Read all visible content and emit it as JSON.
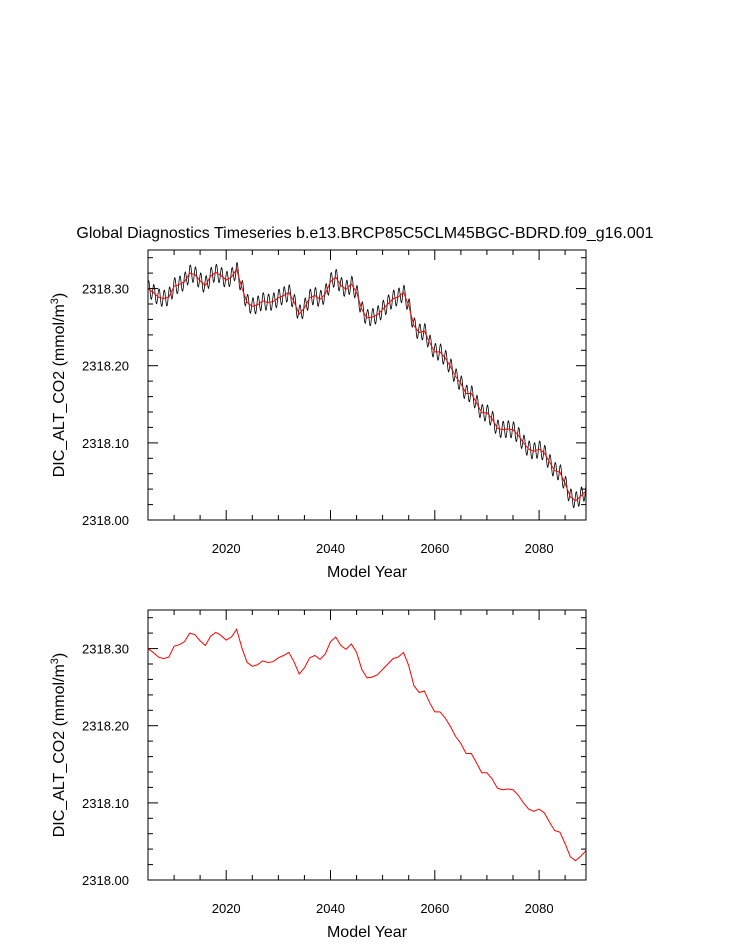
{
  "figure_title": "Global Diagnostics Timeseries b.e13.BRCP85C5CLM45BGC-BDRD.f09_g16.001",
  "colors": {
    "monthly": "#000000",
    "annual": "#ff0000",
    "axis": "#000000"
  },
  "chart_data": [
    {
      "type": "line",
      "title": "Global Diagnostics Timeseries b.e13.BRCP85C5CLM45BGC-BDRD.f09_g16.001",
      "xlabel": "Model Year",
      "ylabel": "DIC_ALT_CO2 (mmol/m",
      "ylabel_sup": "3",
      "ylabel_close": ")",
      "xlim": [
        2005,
        2089
      ],
      "ylim": [
        2318.0,
        2318.35
      ],
      "xticks": [
        2020,
        2040,
        2060,
        2080
      ],
      "xtick_labels": [
        "2020",
        "2040",
        "2060",
        "2080"
      ],
      "yticks": [
        2318.0,
        2318.1,
        2318.2,
        2318.3
      ],
      "ytick_labels": [
        "2318.00",
        "2318.10",
        "2318.20",
        "2318.30"
      ],
      "series": [
        {
          "name": "monthly",
          "style": "black",
          "seasonal_amplitude": 0.011,
          "base": "annual"
        },
        {
          "name": "annual",
          "style": "red"
        }
      ]
    },
    {
      "type": "line",
      "xlabel": "Model Year",
      "ylabel": "DIC_ALT_CO2 (mmol/m",
      "ylabel_sup": "3",
      "ylabel_close": ")",
      "xlim": [
        2005,
        2089
      ],
      "ylim": [
        2318.0,
        2318.35
      ],
      "xticks": [
        2020,
        2040,
        2060,
        2080
      ],
      "xtick_labels": [
        "2020",
        "2040",
        "2060",
        "2080"
      ],
      "yticks": [
        2318.0,
        2318.1,
        2318.2,
        2318.3
      ],
      "ytick_labels": [
        "2318.00",
        "2318.10",
        "2318.20",
        "2318.30"
      ],
      "series": [
        {
          "name": "annual",
          "style": "red",
          "x": [
            2005,
            2006,
            2007,
            2008,
            2009,
            2010,
            2011,
            2012,
            2013,
            2014,
            2015,
            2016,
            2017,
            2018,
            2019,
            2020,
            2021,
            2022,
            2023,
            2024,
            2025,
            2026,
            2027,
            2028,
            2029,
            2030,
            2031,
            2032,
            2033,
            2034,
            2035,
            2036,
            2037,
            2038,
            2039,
            2040,
            2041,
            2042,
            2043,
            2044,
            2045,
            2046,
            2047,
            2048,
            2049,
            2050,
            2051,
            2052,
            2053,
            2054,
            2055,
            2056,
            2057,
            2058,
            2059,
            2060,
            2061,
            2062,
            2063,
            2064,
            2065,
            2066,
            2067,
            2068,
            2069,
            2070,
            2071,
            2072,
            2073,
            2074,
            2075,
            2076,
            2077,
            2078,
            2079,
            2080,
            2081,
            2082,
            2083,
            2084,
            2085,
            2086,
            2087,
            2088,
            2089
          ],
          "y": [
            2318.3,
            2318.295,
            2318.289,
            2318.287,
            2318.289,
            2318.303,
            2318.305,
            2318.309,
            2318.32,
            2318.318,
            2318.31,
            2318.304,
            2318.316,
            2318.321,
            2318.317,
            2318.311,
            2318.315,
            2318.325,
            2318.301,
            2318.282,
            2318.277,
            2318.279,
            2318.284,
            2318.282,
            2318.283,
            2318.288,
            2318.291,
            2318.295,
            2318.283,
            2318.267,
            2318.275,
            2318.288,
            2318.291,
            2318.286,
            2318.293,
            2318.309,
            2318.315,
            2318.304,
            2318.299,
            2318.306,
            2318.295,
            2318.273,
            2318.262,
            2318.263,
            2318.266,
            2318.273,
            2318.28,
            2318.287,
            2318.289,
            2318.295,
            2318.278,
            2318.252,
            2318.243,
            2318.245,
            2318.23,
            2318.218,
            2318.218,
            2318.21,
            2318.199,
            2318.186,
            2318.177,
            2318.164,
            2318.164,
            2318.152,
            2318.139,
            2318.139,
            2318.131,
            2318.119,
            2318.117,
            2318.118,
            2318.117,
            2318.11,
            2318.1,
            2318.092,
            2318.089,
            2318.092,
            2318.087,
            2318.075,
            2318.064,
            2318.062,
            2318.047,
            2318.03,
            2318.025,
            2318.031,
            2318.038
          ]
        }
      ]
    }
  ]
}
